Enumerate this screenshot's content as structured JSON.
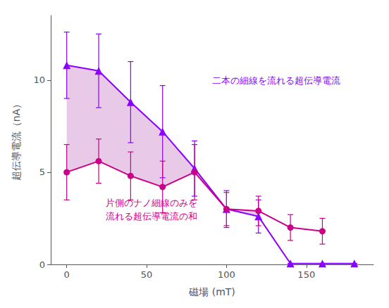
{
  "chart_data": {
    "type": "line",
    "xlabel": "磁場 (mT)",
    "ylabel": "超伝導電流（nA）",
    "xlim": [
      -10,
      192
    ],
    "ylim": [
      0,
      13.5
    ],
    "xticks": [
      0,
      50,
      100,
      150
    ],
    "yticks": [
      0,
      5,
      10
    ],
    "grid": false,
    "series": [
      {
        "x": [
          0,
          20,
          40,
          60,
          80,
          100,
          120,
          140,
          160,
          180
        ],
        "values": [
          10.8,
          10.5,
          8.8,
          7.2,
          5.2,
          3.0,
          2.6,
          0.05,
          0.05,
          0.05
        ],
        "errors_upper": [
          1.8,
          2.0,
          2.2,
          2.5,
          1.5,
          1.0,
          0.9,
          0.0,
          0.0,
          0.0
        ],
        "errors_lower": [
          1.8,
          2.0,
          2.2,
          2.5,
          1.5,
          1.0,
          0.9,
          0.0,
          0.0,
          0.0
        ],
        "color": "#8B00FF",
        "marker": "triangle"
      },
      {
        "x": [
          0,
          20,
          40,
          60,
          80,
          100,
          120,
          140,
          160
        ],
        "values": [
          5.0,
          5.6,
          4.8,
          4.2,
          5.0,
          3.0,
          2.9,
          2.0,
          1.8
        ],
        "errors_upper": [
          1.5,
          1.2,
          1.3,
          1.4,
          1.5,
          0.9,
          0.8,
          0.7,
          0.7
        ],
        "errors_lower": [
          1.5,
          1.2,
          1.3,
          1.4,
          1.5,
          0.9,
          0.8,
          0.7,
          0.7
        ],
        "color": "#CC0088",
        "marker": "circle"
      }
    ],
    "fill_between": {
      "x": [
        0,
        20,
        40,
        60,
        80,
        100,
        120
      ],
      "lower": [
        5.0,
        5.6,
        4.8,
        4.2,
        5.0,
        3.0,
        2.9
      ],
      "upper": [
        10.8,
        10.5,
        8.8,
        7.2,
        5.2,
        3.0,
        2.6
      ],
      "color": "#CC88CC"
    },
    "annotations": [
      {
        "text": "二本の細線を流れる超伝導電流",
        "color": "#8B00FF"
      },
      {
        "text": "片側のナノ細線のみを\n流れる超伝導電流の和",
        "color": "#CC0088"
      }
    ]
  }
}
